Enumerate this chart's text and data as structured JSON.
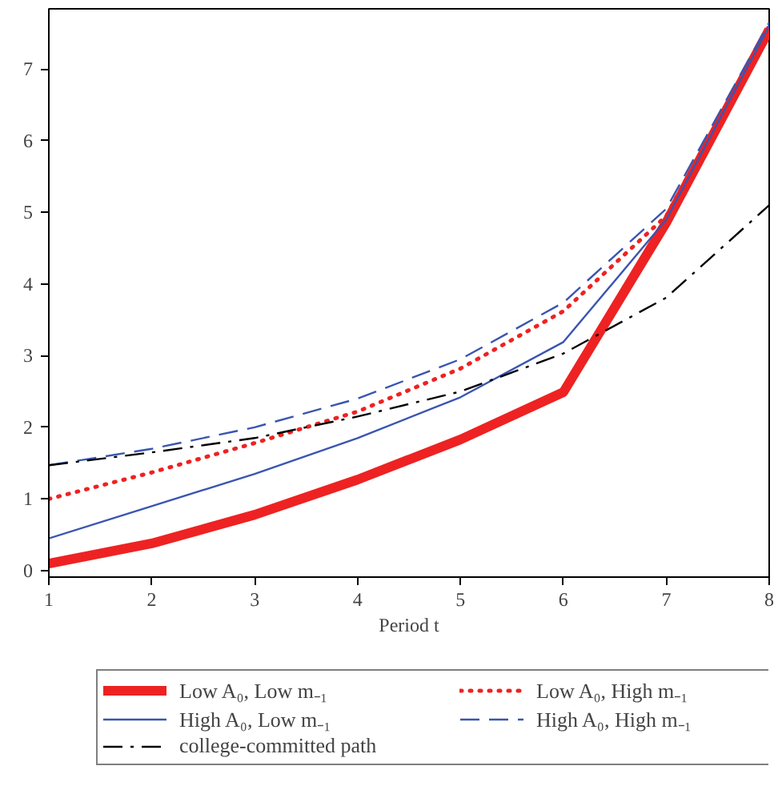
{
  "chart_data": {
    "type": "line",
    "xlabel": "Period t",
    "x": [
      1,
      2,
      3,
      4,
      5,
      6,
      7,
      8
    ],
    "xlim": [
      1,
      8
    ],
    "xticks": [
      1,
      2,
      3,
      4,
      5,
      6,
      7,
      8
    ],
    "ylim": [
      -0.09,
      7.84
    ],
    "yticks": [
      0,
      1,
      2,
      3,
      4,
      5,
      6,
      7
    ],
    "grid": false,
    "legend": "bottom",
    "marker": "none",
    "series": [
      {
        "name": "Low A₀, Low m₋₁",
        "color": "#ee2222",
        "line_style": "solid",
        "values": [
          0.1,
          0.38,
          0.78,
          1.27,
          1.83,
          2.49,
          4.86,
          7.55
        ]
      },
      {
        "name": "Low A₀, High m₋₁",
        "color": "#ee2222",
        "line_style": "dotted",
        "values": [
          1.0,
          1.37,
          1.78,
          2.22,
          2.82,
          3.62,
          4.95,
          7.6
        ]
      },
      {
        "name": "High A₀, Low m₋₁",
        "color": "#3a55b0",
        "line_style": "solid",
        "values": [
          0.45,
          0.9,
          1.35,
          1.85,
          2.42,
          3.19,
          4.9,
          7.6
        ]
      },
      {
        "name": "High A₀, High m₋₁",
        "color": "#3a55b0",
        "line_style": "dashed",
        "values": [
          1.47,
          1.7,
          2.0,
          2.4,
          2.95,
          3.74,
          5.05,
          7.65
        ]
      },
      {
        "name": "college-committed path",
        "color": "#000000",
        "line_style": "dashdot",
        "values": [
          1.47,
          1.65,
          1.85,
          2.15,
          2.5,
          3.03,
          3.81,
          5.1
        ]
      }
    ]
  }
}
